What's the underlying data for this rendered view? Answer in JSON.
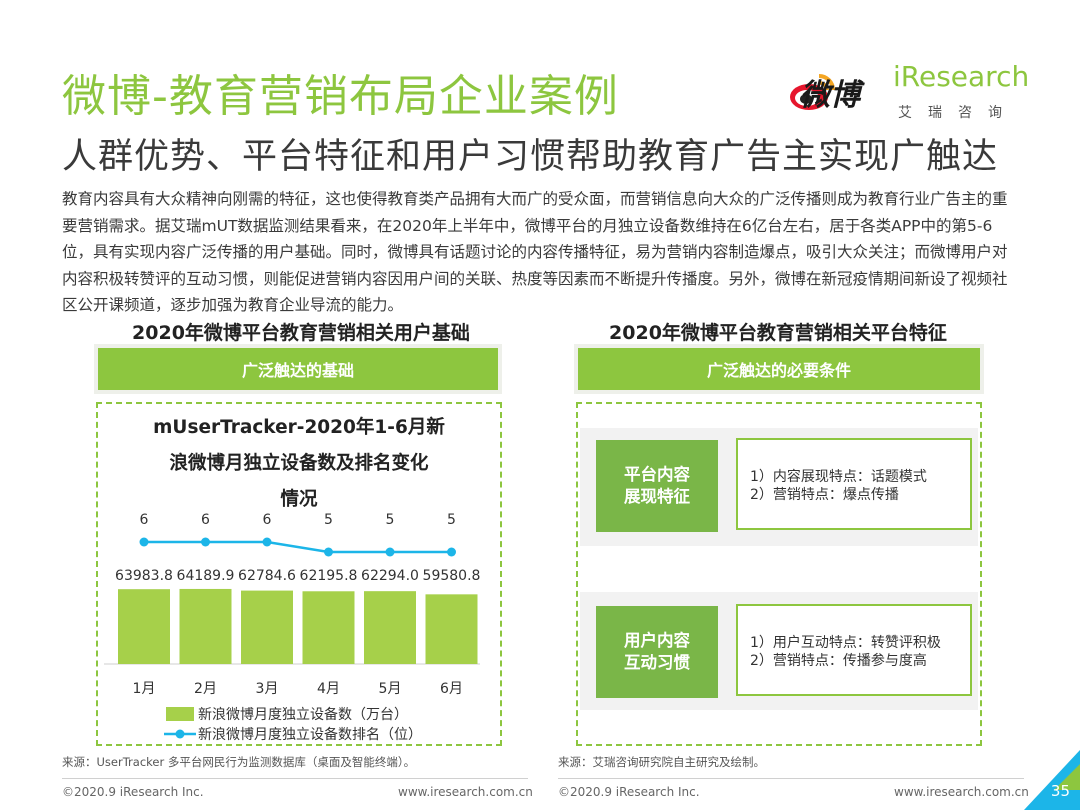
{
  "header": {
    "title": "微博-教育营销布局企业案例",
    "subtitle": "人群优势、平台特征和用户习惯帮助教育广告主实现广触达",
    "weibo_logo_text": "微博",
    "iresearch_logo": "iResearch",
    "iresearch_sub": "艾瑞咨询"
  },
  "intro": "教育内容具有大众精神向刚需的特征，这也使得教育类产品拥有大而广的受众面，而营销信息向大众的广泛传播则成为教育行业广告主的重要营销需求。据艾瑞mUT数据监测结果看来，在2020年上半年中，微博平台的月独立设备数维持在6亿台左右，居于各类APP中的第5-6位，具有实现内容广泛传播的用户基础。同时，微博具有话题讨论的内容传播特征，易为营销内容制造爆点，吸引大众关注；而微博用户对内容积极转赞评的互动习惯，则能促进营销内容因用户间的关联、热度等因素而不断提升传播度。另外，微博在新冠疫情期间新设了视频社区公开课频道，逐步加强为教育企业导流的能力。",
  "left": {
    "heading": "2020年微博平台教育营销相关用户基础",
    "banner": "广泛触达的基础",
    "source": "来源：UserTracker 多平台网民行为监测数据库（桌面及智能终端）。"
  },
  "right": {
    "heading": "2020年微博平台教育营销相关平台特征",
    "banner": "广泛触达的必要条件",
    "rows": [
      {
        "label_1": "平台内容",
        "label_2": "展现特征",
        "line_1": "1）内容展现特点：话题模式",
        "line_2": "2）营销特点：爆点传播"
      },
      {
        "label_1": "用户内容",
        "label_2": "互动习惯",
        "line_1": "1）用户互动特点：转赞评积极",
        "line_2": "2）营销特点：传播参与度高"
      }
    ],
    "source": "来源：艾瑞咨询研究院自主研究及绘制。"
  },
  "footer": {
    "copyright": "©2020.9 iResearch Inc.",
    "url": "www.iresearch.com.cn",
    "page": "35"
  },
  "colors": {
    "green": "#8dc63f",
    "bar": "#a6d04a",
    "line": "#1cb5e8"
  },
  "chart_data": {
    "type": "bar",
    "title_lines": [
      "mUserTracker-2020年1-6月新",
      "浪微博月独立设备数及排名变化",
      "情况"
    ],
    "categories": [
      "1月",
      "2月",
      "3月",
      "4月",
      "5月",
      "6月"
    ],
    "series": [
      {
        "name": "新浪微博月度独立设备数（万台）",
        "type": "bar",
        "values": [
          63983.8,
          64189.9,
          62784.6,
          62195.8,
          62294.0,
          59580.8
        ],
        "labels": [
          "63983.8",
          "64189.9",
          "62784.6",
          "62195.8",
          "62294.0",
          "59580.8"
        ]
      },
      {
        "name": "新浪微博月度独立设备数排名（位）",
        "type": "line",
        "values": [
          6,
          6,
          6,
          5,
          5,
          5
        ]
      }
    ],
    "grid": false,
    "legend": "bottom"
  }
}
